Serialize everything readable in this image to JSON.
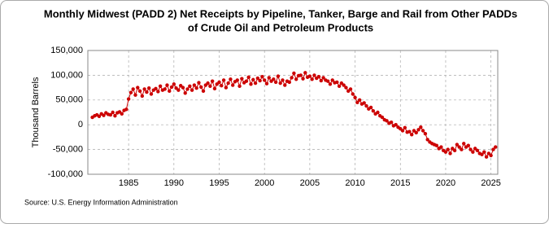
{
  "chart_data": {
    "type": "line",
    "title": [
      "Monthly Midwest (PADD 2) Net Receipts by Pipeline, Tanker, Barge and Rail from Other PADDs",
      "of Crude Oil and Petroleum Products"
    ],
    "ylabel": "Thousand Barrels",
    "source": "Source: U.S. Energy Information Administration",
    "color": "#cc0000",
    "marker": true,
    "grid": true,
    "xlim": [
      1980.5,
      2025.75
    ],
    "xticks": [
      1985,
      1990,
      1995,
      2000,
      2005,
      2010,
      2015,
      2020,
      2025
    ],
    "ylim": [
      -100000,
      150000
    ],
    "yticks": [
      {
        "value": -100000,
        "label": "-100,000"
      },
      {
        "value": -50000,
        "label": "-50,000"
      },
      0,
      {
        "value": 50000,
        "label": "50,000"
      },
      {
        "value": 100000,
        "label": "100,000"
      },
      {
        "value": 150000,
        "label": "150,000"
      }
    ],
    "x": [
      1981,
      1981.25,
      1981.5,
      1981.75,
      1982,
      1982.25,
      1982.5,
      1982.75,
      1983,
      1983.25,
      1983.5,
      1983.75,
      1984,
      1984.25,
      1984.5,
      1984.75,
      1985,
      1985.25,
      1985.5,
      1985.75,
      1986,
      1986.25,
      1986.5,
      1986.75,
      1987,
      1987.25,
      1987.5,
      1987.75,
      1988,
      1988.25,
      1988.5,
      1988.75,
      1989,
      1989.25,
      1989.5,
      1989.75,
      1990,
      1990.25,
      1990.5,
      1990.75,
      1991,
      1991.25,
      1991.5,
      1991.75,
      1992,
      1992.25,
      1992.5,
      1992.75,
      1993,
      1993.25,
      1993.5,
      1993.75,
      1994,
      1994.25,
      1994.5,
      1994.75,
      1995,
      1995.25,
      1995.5,
      1995.75,
      1996,
      1996.25,
      1996.5,
      1996.75,
      1997,
      1997.25,
      1997.5,
      1997.75,
      1998,
      1998.25,
      1998.5,
      1998.75,
      1999,
      1999.25,
      1999.5,
      1999.75,
      2000,
      2000.25,
      2000.5,
      2000.75,
      2001,
      2001.25,
      2001.5,
      2001.75,
      2002,
      2002.25,
      2002.5,
      2002.75,
      2003,
      2003.25,
      2003.5,
      2003.75,
      2004,
      2004.25,
      2004.5,
      2004.75,
      2005,
      2005.25,
      2005.5,
      2005.75,
      2006,
      2006.25,
      2006.5,
      2006.75,
      2007,
      2007.25,
      2007.5,
      2007.75,
      2008,
      2008.25,
      2008.5,
      2008.75,
      2009,
      2009.25,
      2009.5,
      2009.75,
      2010,
      2010.25,
      2010.5,
      2010.75,
      2011,
      2011.25,
      2011.5,
      2011.75,
      2012,
      2012.25,
      2012.5,
      2012.75,
      2013,
      2013.25,
      2013.5,
      2013.75,
      2014,
      2014.25,
      2014.5,
      2014.75,
      2015,
      2015.25,
      2015.5,
      2015.75,
      2016,
      2016.25,
      2016.5,
      2016.75,
      2017,
      2017.25,
      2017.5,
      2017.75,
      2018,
      2018.25,
      2018.5,
      2018.75,
      2019,
      2019.25,
      2019.5,
      2019.75,
      2020,
      2020.25,
      2020.5,
      2020.75,
      2021,
      2021.25,
      2021.5,
      2021.75,
      2022,
      2022.25,
      2022.5,
      2022.75,
      2023,
      2023.25,
      2023.5,
      2023.75,
      2024,
      2024.25,
      2024.5,
      2024.75,
      2025,
      2025.25,
      2025.5
    ],
    "values": [
      15000,
      18000,
      20000,
      17000,
      22000,
      19000,
      24000,
      21000,
      20000,
      25000,
      18000,
      24000,
      26000,
      22000,
      29000,
      31000,
      52000,
      65000,
      72000,
      60000,
      75000,
      68000,
      58000,
      72000,
      66000,
      74000,
      62000,
      70000,
      73000,
      67000,
      78000,
      70000,
      72000,
      80000,
      68000,
      76000,
      82000,
      74000,
      70000,
      79000,
      75000,
      64000,
      72000,
      78000,
      70000,
      80000,
      74000,
      85000,
      76000,
      68000,
      80000,
      84000,
      78000,
      88000,
      73000,
      82000,
      86000,
      79000,
      90000,
      75000,
      84000,
      92000,
      80000,
      87000,
      90000,
      78000,
      93000,
      85000,
      88000,
      96000,
      82000,
      91000,
      84000,
      94000,
      89000,
      97000,
      90000,
      83000,
      95000,
      88000,
      92000,
      86000,
      98000,
      84000,
      90000,
      80000,
      88000,
      86000,
      95000,
      104000,
      92000,
      99000,
      100000,
      93000,
      105000,
      96000,
      98000,
      92000,
      100000,
      94000,
      97000,
      89000,
      95000,
      90000,
      88000,
      82000,
      90000,
      85000,
      86000,
      78000,
      84000,
      80000,
      75000,
      68000,
      72000,
      62000,
      55000,
      45000,
      50000,
      42000,
      44000,
      38000,
      32000,
      35000,
      28000,
      22000,
      25000,
      18000,
      15000,
      10000,
      8000,
      3000,
      5000,
      -2000,
      0,
      -5000,
      -8000,
      -12000,
      -6000,
      -15000,
      -14000,
      -20000,
      -12000,
      -16000,
      -10000,
      -5000,
      -12000,
      -18000,
      -30000,
      -35000,
      -38000,
      -40000,
      -42000,
      -48000,
      -45000,
      -52000,
      -55000,
      -50000,
      -58000,
      -48000,
      -52000,
      -40000,
      -45000,
      -50000,
      -38000,
      -45000,
      -42000,
      -50000,
      -55000,
      -48000,
      -52000,
      -58000,
      -60000,
      -55000,
      -65000,
      -58000,
      -62000,
      -50000,
      -45000
    ]
  }
}
